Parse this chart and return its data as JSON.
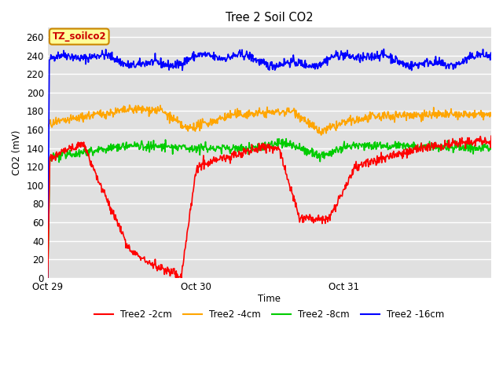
{
  "title": "Tree 2 Soil CO2",
  "xlabel": "Time",
  "ylabel": "CO2 (mV)",
  "ylim": [
    0,
    270
  ],
  "yticks": [
    0,
    20,
    40,
    60,
    80,
    100,
    120,
    140,
    160,
    180,
    200,
    220,
    240,
    260
  ],
  "background_color": "#ffffff",
  "plot_bg_color": "#e0e0e0",
  "grid_color": "#ffffff",
  "annotation_text": "TZ_soilco2",
  "annotation_bg": "#ffff99",
  "annotation_border": "#cc8800",
  "legend_labels": [
    "Tree2 -2cm",
    "Tree2 -4cm",
    "Tree2 -8cm",
    "Tree2 -16cm"
  ],
  "legend_colors": [
    "#ff0000",
    "#ffa500",
    "#00cc00",
    "#0000ff"
  ],
  "line_colors": [
    "#ff0000",
    "#ffa500",
    "#00cc00",
    "#0000ff"
  ],
  "x_tick_labels": [
    "Oct 29",
    "Oct 30",
    "Oct 31"
  ],
  "x_tick_positions": [
    0,
    288,
    576
  ],
  "total_points": 864,
  "seed": 42,
  "figsize": [
    6.4,
    4.8
  ],
  "dpi": 100
}
